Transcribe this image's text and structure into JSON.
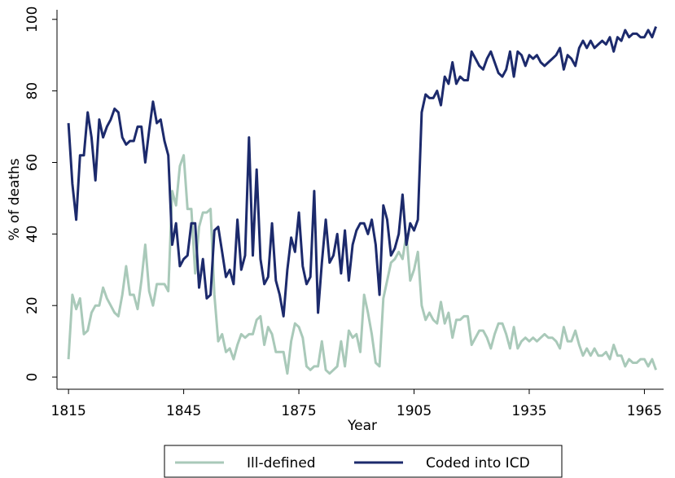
{
  "chart_data": {
    "type": "line",
    "x_label": "Year",
    "y_label": "% of deaths",
    "x": [
      1815,
      1816,
      1817,
      1818,
      1819,
      1820,
      1821,
      1822,
      1823,
      1824,
      1825,
      1826,
      1827,
      1828,
      1829,
      1830,
      1831,
      1832,
      1833,
      1834,
      1835,
      1836,
      1837,
      1838,
      1839,
      1840,
      1841,
      1842,
      1843,
      1844,
      1845,
      1846,
      1847,
      1848,
      1849,
      1850,
      1851,
      1852,
      1853,
      1854,
      1855,
      1856,
      1857,
      1858,
      1859,
      1860,
      1861,
      1862,
      1863,
      1864,
      1865,
      1866,
      1867,
      1868,
      1869,
      1870,
      1871,
      1872,
      1873,
      1874,
      1875,
      1876,
      1877,
      1878,
      1879,
      1880,
      1881,
      1882,
      1883,
      1884,
      1885,
      1886,
      1887,
      1888,
      1889,
      1890,
      1891,
      1892,
      1893,
      1894,
      1895,
      1896,
      1897,
      1898,
      1899,
      1900,
      1901,
      1902,
      1903,
      1904,
      1905,
      1906,
      1907,
      1908,
      1909,
      1910,
      1911,
      1912,
      1913,
      1914,
      1915,
      1916,
      1917,
      1918,
      1919,
      1920,
      1921,
      1922,
      1923,
      1924,
      1925,
      1926,
      1927,
      1928,
      1929,
      1930,
      1931,
      1932,
      1933,
      1934,
      1935,
      1936,
      1937,
      1938,
      1939,
      1940,
      1941,
      1942,
      1943,
      1944,
      1945,
      1946,
      1947,
      1948,
      1949,
      1950,
      1951,
      1952,
      1953,
      1954,
      1955,
      1956,
      1957,
      1958,
      1959,
      1960,
      1961,
      1962,
      1963,
      1964,
      1965,
      1966,
      1967,
      1968
    ],
    "series": [
      {
        "name": "Ill-defined",
        "color": "#a9c9b9",
        "values": [
          5,
          23,
          19,
          22,
          12,
          13,
          18,
          20,
          20,
          25,
          22,
          20,
          18,
          17,
          23,
          31,
          23,
          23,
          19,
          27,
          37,
          24,
          20,
          26,
          26,
          26,
          24,
          52,
          48,
          59,
          62,
          47,
          47,
          29,
          42,
          46,
          46,
          47,
          23,
          10,
          12,
          7,
          8,
          5,
          9,
          12,
          11,
          12,
          12,
          16,
          17,
          9,
          14,
          12,
          7,
          7,
          7,
          1,
          10,
          15,
          14,
          11,
          3,
          2,
          3,
          3,
          10,
          2,
          1,
          2,
          3,
          10,
          3,
          13,
          11,
          12,
          7,
          23,
          18,
          12,
          4,
          3,
          22,
          27,
          32,
          33,
          35,
          33,
          40,
          27,
          30,
          35,
          20,
          16,
          18,
          16,
          15,
          21,
          15,
          18,
          11,
          16,
          16,
          17,
          17,
          9,
          11,
          13,
          13,
          11,
          8,
          12,
          15,
          15,
          12,
          8,
          14,
          8,
          10,
          11,
          10,
          11,
          10,
          11,
          12,
          11,
          11,
          10,
          8,
          14,
          10,
          10,
          13,
          9,
          6,
          8,
          6,
          8,
          6,
          6,
          7,
          5,
          9,
          6,
          6,
          3,
          5,
          4,
          4,
          5,
          5,
          3,
          5,
          2
        ]
      },
      {
        "name": "Coded into ICD",
        "color": "#1c2a6c",
        "values": [
          71,
          54,
          44,
          62,
          62,
          74,
          67,
          55,
          72,
          67,
          70,
          72,
          75,
          74,
          67,
          65,
          66,
          66,
          70,
          70,
          60,
          69,
          77,
          71,
          72,
          66,
          62,
          37,
          43,
          31,
          33,
          34,
          43,
          43,
          25,
          33,
          22,
          23,
          41,
          42,
          35,
          28,
          30,
          26,
          44,
          30,
          34,
          67,
          34,
          58,
          33,
          26,
          28,
          43,
          27,
          23,
          17,
          30,
          39,
          35,
          46,
          31,
          26,
          28,
          52,
          18,
          32,
          44,
          32,
          34,
          40,
          29,
          41,
          27,
          37,
          41,
          43,
          43,
          40,
          44,
          37,
          23,
          48,
          44,
          34,
          36,
          40,
          51,
          37,
          43,
          41,
          44,
          74,
          79,
          78,
          78,
          80,
          76,
          84,
          82,
          88,
          82,
          84,
          83,
          83,
          91,
          89,
          87,
          86,
          89,
          91,
          88,
          85,
          84,
          86,
          91,
          84,
          91,
          90,
          87,
          90,
          89,
          90,
          88,
          87,
          88,
          89,
          90,
          92,
          86,
          90,
          89,
          87,
          92,
          94,
          92,
          94,
          92,
          93,
          94,
          93,
          95,
          91,
          95,
          94,
          97,
          95,
          96,
          96,
          95,
          95,
          97,
          95,
          98
        ]
      }
    ],
    "xlim": [
      1812,
      1970
    ],
    "xticks": [
      1815,
      1845,
      1875,
      1905,
      1935,
      1965
    ],
    "ylim": [
      -3.4,
      102
    ],
    "yticks": [
      0,
      20,
      40,
      60,
      80,
      100
    ]
  }
}
